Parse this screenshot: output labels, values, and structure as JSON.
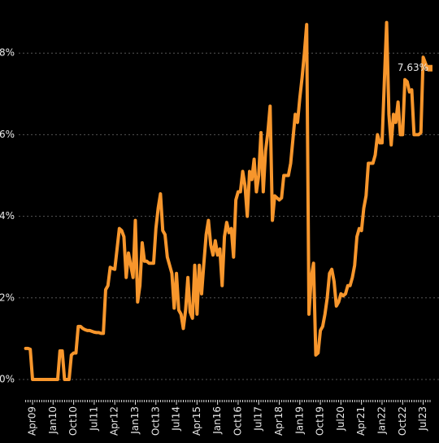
{
  "chart_data": {
    "type": "line",
    "color": "#f7962c",
    "grid": true,
    "ylim": [
      0,
      8.8
    ],
    "yticks": [
      {
        "value": 0,
        "label": "0%"
      },
      {
        "value": 2,
        "label": "2%"
      },
      {
        "value": 4,
        "label": "4%"
      },
      {
        "value": 6,
        "label": "6%"
      },
      {
        "value": 8,
        "label": "8%"
      }
    ],
    "annotations": [
      {
        "text": "7.63%",
        "index": 177
      }
    ],
    "categories": [
      null,
      null,
      null,
      "Apr09",
      null,
      null,
      null,
      null,
      null,
      null,
      null,
      null,
      "Jan10",
      null,
      null,
      null,
      null,
      null,
      null,
      null,
      null,
      "Oct10",
      null,
      null,
      null,
      null,
      null,
      null,
      null,
      null,
      "Jul11",
      null,
      null,
      null,
      null,
      null,
      null,
      null,
      null,
      "Apr12",
      null,
      null,
      null,
      null,
      null,
      null,
      null,
      null,
      "Jan13",
      null,
      null,
      null,
      null,
      null,
      null,
      null,
      null,
      "Oct13",
      null,
      null,
      null,
      null,
      null,
      null,
      null,
      null,
      "Jul14",
      null,
      null,
      null,
      null,
      null,
      null,
      null,
      null,
      "Apr15",
      null,
      null,
      null,
      null,
      null,
      null,
      null,
      null,
      "Jan16",
      null,
      null,
      null,
      null,
      null,
      null,
      null,
      null,
      "Oct16",
      null,
      null,
      null,
      null,
      null,
      null,
      null,
      null,
      "Jul17",
      null,
      null,
      null,
      null,
      null,
      null,
      null,
      null,
      "Apr18",
      null,
      null,
      null,
      null,
      null,
      null,
      null,
      null,
      "Jan19",
      null,
      null,
      null,
      null,
      null,
      null,
      null,
      null,
      "Oct19",
      null,
      null,
      null,
      null,
      null,
      null,
      null,
      null,
      "Jul20",
      null,
      null,
      null,
      null,
      null,
      null,
      null,
      null,
      "Apr21",
      null,
      null,
      null,
      null,
      null,
      null,
      null,
      null,
      "Jan22",
      null,
      null,
      null,
      null,
      null,
      null,
      null,
      null,
      "Oct22",
      null,
      null,
      null,
      null,
      null,
      null,
      null,
      null,
      "Jul23",
      null,
      null,
      null
    ],
    "values": [
      0.76,
      0.76,
      0.74,
      0,
      0,
      0,
      0,
      0,
      0,
      0,
      0,
      0,
      0,
      0,
      0,
      0.7,
      0.7,
      0,
      0,
      0,
      0.6,
      0.65,
      0.65,
      1.3,
      1.3,
      1.25,
      1.22,
      1.2,
      1.2,
      1.18,
      1.16,
      1.15,
      1.15,
      1.13,
      1.13,
      2.2,
      2.3,
      2.75,
      2.72,
      2.7,
      3.2,
      3.7,
      3.65,
      3.5,
      2.5,
      3.1,
      2.8,
      2.5,
      3.9,
      1.9,
      2.3,
      3.35,
      2.9,
      2.9,
      2.85,
      2.85,
      2.85,
      3.7,
      4.2,
      4.55,
      3.65,
      3.55,
      3.0,
      2.8,
      2.6,
      1.75,
      2.6,
      1.7,
      1.6,
      1.25,
      1.7,
      2.5,
      1.65,
      1.5,
      2.8,
      1.6,
      2.8,
      2.1,
      2.85,
      3.55,
      3.9,
      3.3,
      3.05,
      3.4,
      3.05,
      3.2,
      2.3,
      3.5,
      3.85,
      3.6,
      3.7,
      3.0,
      4.4,
      4.6,
      4.6,
      5.1,
      4.75,
      4.0,
      5.1,
      4.9,
      5.4,
      4.6,
      5.0,
      6.05,
      4.6,
      5.6,
      6.05,
      6.7,
      3.9,
      4.5,
      4.45,
      4.4,
      4.45,
      5.0,
      5.0,
      5.0,
      5.3,
      5.9,
      6.5,
      6.3,
      6.9,
      7.4,
      8.0,
      8.7,
      1.6,
      2.5,
      2.85,
      0.6,
      0.65,
      1.2,
      1.3,
      1.6,
      2.0,
      2.6,
      2.7,
      2.4,
      1.8,
      1.9,
      2.1,
      2.05,
      2.1,
      2.3,
      2.3,
      2.5,
      2.8,
      3.5,
      3.7,
      3.65,
      4.2,
      4.5,
      5.3,
      5.3,
      5.3,
      5.5,
      6.0,
      5.8,
      5.8,
      7.3,
      8.75,
      6.5,
      5.75,
      6.5,
      6.3,
      6.8,
      6.0,
      6.0,
      7.35,
      7.3,
      7.05,
      7.1,
      6.0,
      6.0,
      6.0,
      6.05,
      7.9,
      7.75,
      7.6,
      7.63
    ]
  }
}
